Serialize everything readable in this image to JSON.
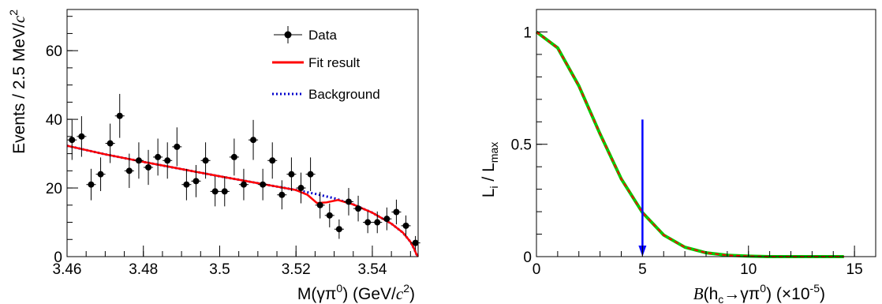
{
  "chart_data": [
    {
      "type": "scatter",
      "xlabel": "M(γπ⁰) (GeV/c²)",
      "xlabel_parts": {
        "main": "M(γπ",
        "sup0": "0",
        "mid": ") (GeV/",
        "c": "c",
        "sup2": "2",
        "end": ")"
      },
      "ylabel": "Events / 2.5 MeV/c²",
      "ylabel_parts": {
        "main": "Events / 2.5 MeV/",
        "c": "c",
        "sup2": "2"
      },
      "xlim": [
        3.46,
        3.552
      ],
      "ylim": [
        0,
        72
      ],
      "x_ticks": [
        3.46,
        3.48,
        3.5,
        3.52,
        3.54
      ],
      "x_tick_labels": [
        "3.46",
        "3.48",
        "3.5",
        "3.52",
        "3.54"
      ],
      "y_ticks": [
        0,
        20,
        40,
        60
      ],
      "y_tick_labels": [
        "0",
        "20",
        "40",
        "60"
      ],
      "grid": false,
      "legend_position": "top-right",
      "legend": [
        {
          "label": "Data",
          "style": "points",
          "color": "#000000"
        },
        {
          "label": "Fit result",
          "style": "solid",
          "color": "#ff0000"
        },
        {
          "label": "Background",
          "style": "dotted",
          "color": "#0000cc"
        }
      ],
      "series": [
        {
          "name": "Data",
          "x": [
            3.4613,
            3.4638,
            3.4663,
            3.4688,
            3.4713,
            3.4738,
            3.4763,
            3.4788,
            3.4813,
            3.4838,
            3.4863,
            3.4888,
            3.4913,
            3.4938,
            3.4963,
            3.4988,
            3.5013,
            3.5038,
            3.5063,
            3.5088,
            3.5113,
            3.5138,
            3.5163,
            3.5188,
            3.5213,
            3.5238,
            3.5263,
            3.5288,
            3.5313,
            3.5338,
            3.5363,
            3.5388,
            3.5413,
            3.5438,
            3.5463,
            3.5488,
            3.5513
          ],
          "y": [
            34,
            35,
            21,
            24,
            33,
            41,
            25,
            28,
            26,
            29,
            28,
            32,
            21,
            22,
            28,
            19,
            19,
            29,
            21,
            34,
            21,
            28,
            18,
            24,
            20,
            24,
            15,
            12,
            8,
            16,
            14,
            10,
            10,
            11,
            13,
            9,
            4
          ]
        },
        {
          "name": "Fit result",
          "x": [
            3.46,
            3.47,
            3.48,
            3.49,
            3.5,
            3.51,
            3.515,
            3.52,
            3.523,
            3.5255,
            3.528,
            3.531,
            3.535,
            3.54,
            3.545,
            3.548,
            3.55,
            3.551,
            3.5515,
            3.552
          ],
          "y": [
            32.3,
            29.8,
            27.6,
            25.5,
            23.4,
            21.4,
            20.4,
            19.4,
            18.0,
            15.6,
            15.8,
            16.5,
            15.2,
            12.8,
            9.6,
            7.0,
            4.3,
            2.2,
            0.8,
            0
          ]
        },
        {
          "name": "Background",
          "x": [
            3.46,
            3.47,
            3.48,
            3.49,
            3.5,
            3.51,
            3.515,
            3.52,
            3.525,
            3.53,
            3.535,
            3.54,
            3.545,
            3.548,
            3.55,
            3.551,
            3.5515,
            3.552
          ],
          "y": [
            32.3,
            29.8,
            27.6,
            25.5,
            23.4,
            21.4,
            20.4,
            19.4,
            18.3,
            17.0,
            15.2,
            12.8,
            9.6,
            7.0,
            4.3,
            2.2,
            0.8,
            0
          ]
        }
      ]
    },
    {
      "type": "line",
      "xlabel": "B(h_c→γπ⁰) (×10⁻⁵)",
      "xlabel_parts": {
        "B": "B",
        "open": "(h",
        "sub_c": "c",
        "mid": "→γπ",
        "sup0": "0",
        "close": ") (×10",
        "sup_exp": "-5",
        "end": ")"
      },
      "ylabel": "L_i / L_max",
      "ylabel_parts": {
        "L1": "L",
        "sub_i": "i",
        "slash": " / L",
        "sub_max": "max"
      },
      "xlim": [
        0,
        16
      ],
      "ylim": [
        0,
        1.1
      ],
      "x_ticks": [
        0,
        5,
        10,
        15
      ],
      "x_tick_labels": [
        "0",
        "5",
        "10",
        "15"
      ],
      "y_ticks": [
        0,
        0.5,
        1
      ],
      "y_tick_labels": [
        "0",
        "0.5",
        "1"
      ],
      "grid": false,
      "series": [
        {
          "name": "",
          "color": "#00cc00",
          "style": "solid",
          "x": [
            0,
            1,
            2,
            3,
            4,
            5,
            6,
            7,
            8,
            9,
            10,
            11,
            12,
            13,
            14,
            14.5
          ],
          "y": [
            1.0,
            0.929,
            0.76,
            0.546,
            0.346,
            0.196,
            0.096,
            0.042,
            0.017,
            0.006,
            0.002,
            0.0,
            0.0,
            0.0,
            0.0,
            0.0
          ]
        },
        {
          "name": "",
          "color": "#ff0000",
          "style": "dashed",
          "x": [
            0,
            1,
            2,
            3,
            4,
            5,
            6,
            7,
            8,
            9,
            10,
            11,
            12,
            13,
            14,
            14.5
          ],
          "y": [
            1.0,
            0.929,
            0.76,
            0.546,
            0.346,
            0.196,
            0.096,
            0.042,
            0.017,
            0.006,
            0.002,
            0.0,
            0.0,
            0.0,
            0.0,
            0.0
          ]
        }
      ],
      "annotations": [
        {
          "type": "arrow",
          "color": "#0000ff",
          "x": 5,
          "y_from": 0.61,
          "y_to": 0
        }
      ]
    }
  ]
}
